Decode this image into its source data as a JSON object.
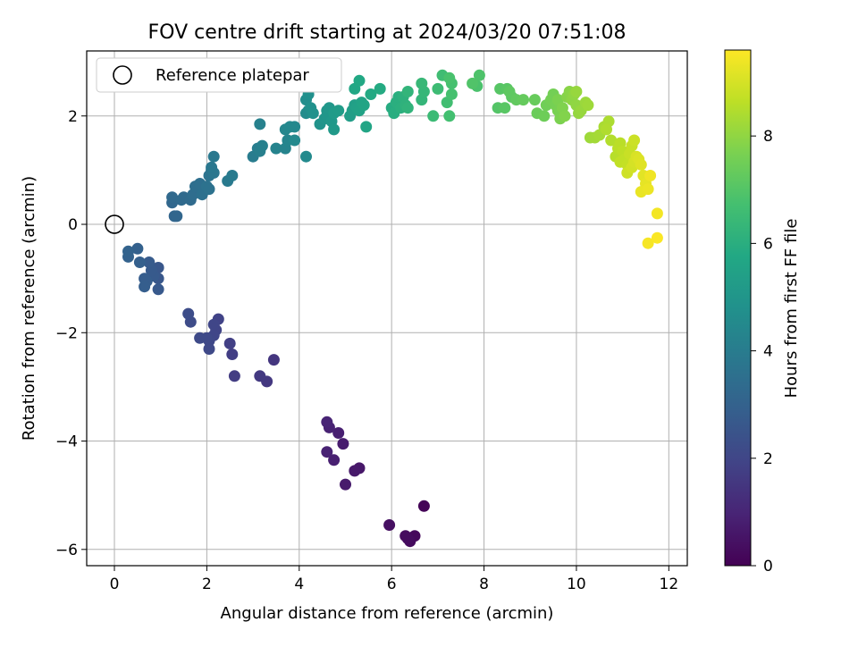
{
  "chart_data": {
    "type": "scatter",
    "title": "FOV centre drift starting at 2024/03/20 07:51:08",
    "xlabel": "Angular distance from reference (arcmin)",
    "ylabel": "Rotation from reference (arcmin)",
    "xlim": [
      -0.6,
      12.4
    ],
    "ylim": [
      -6.3,
      3.2
    ],
    "xticks": [
      "0",
      "2",
      "4",
      "6",
      "8",
      "10",
      "12"
    ],
    "yticks": [
      "−6",
      "−4",
      "−2",
      "0",
      "2"
    ],
    "grid": true,
    "legend": {
      "position": "top-left",
      "entries": [
        {
          "label": "Reference platepar",
          "marker": "open-circle",
          "x": 0,
          "y": 0
        }
      ]
    },
    "colorbar": {
      "label": "Hours from first FF file",
      "min": 0,
      "max": 9.6,
      "ticks": [
        "0",
        "2",
        "4",
        "6",
        "8"
      ],
      "colormap": "viridis"
    },
    "points": [
      [
        6.7,
        -5.2,
        0.1
      ],
      [
        6.5,
        -5.75,
        0.2
      ],
      [
        6.4,
        -5.85,
        0.25
      ],
      [
        6.35,
        -5.8,
        0.3
      ],
      [
        6.3,
        -5.75,
        0.3
      ],
      [
        5.95,
        -5.55,
        0.4
      ],
      [
        5.3,
        -4.5,
        0.6
      ],
      [
        5.2,
        -4.55,
        0.65
      ],
      [
        5.0,
        -4.8,
        0.7
      ],
      [
        4.95,
        -4.05,
        0.75
      ],
      [
        4.85,
        -3.85,
        0.8
      ],
      [
        4.75,
        -4.35,
        0.85
      ],
      [
        4.65,
        -3.75,
        0.9
      ],
      [
        4.6,
        -4.2,
        0.9
      ],
      [
        4.6,
        -3.65,
        0.95
      ],
      [
        3.45,
        -2.5,
        1.5
      ],
      [
        3.3,
        -2.9,
        1.55
      ],
      [
        3.15,
        -2.8,
        1.6
      ],
      [
        2.6,
        -2.8,
        1.7
      ],
      [
        2.55,
        -2.4,
        1.75
      ],
      [
        2.5,
        -2.2,
        1.8
      ],
      [
        2.25,
        -1.75,
        1.9
      ],
      [
        2.2,
        -1.95,
        1.95
      ],
      [
        2.15,
        -2.05,
        2.0
      ],
      [
        2.15,
        -1.85,
        2.0
      ],
      [
        2.05,
        -2.15,
        2.05
      ],
      [
        2.05,
        -2.3,
        2.1
      ],
      [
        2.0,
        -2.1,
        2.1
      ],
      [
        1.85,
        -2.1,
        2.15
      ],
      [
        1.65,
        -1.8,
        2.2
      ],
      [
        1.6,
        -1.65,
        2.25
      ],
      [
        0.95,
        -0.8,
        2.6
      ],
      [
        0.95,
        -1.0,
        2.6
      ],
      [
        0.95,
        -1.2,
        2.65
      ],
      [
        0.85,
        -0.95,
        2.7
      ],
      [
        0.8,
        -0.85,
        2.7
      ],
      [
        0.75,
        -0.7,
        2.75
      ],
      [
        0.7,
        -1.05,
        2.8
      ],
      [
        0.65,
        -1.0,
        2.8
      ],
      [
        0.65,
        -1.15,
        2.85
      ],
      [
        0.55,
        -0.7,
        2.9
      ],
      [
        0.5,
        -0.45,
        2.95
      ],
      [
        0.3,
        -0.6,
        3.0
      ],
      [
        0.3,
        -0.5,
        3.05
      ],
      [
        1.3,
        0.15,
        3.1
      ],
      [
        1.35,
        0.15,
        3.15
      ],
      [
        1.25,
        0.4,
        3.2
      ],
      [
        1.25,
        0.5,
        3.25
      ],
      [
        1.45,
        0.45,
        3.3
      ],
      [
        1.5,
        0.5,
        3.3
      ],
      [
        1.65,
        0.45,
        3.35
      ],
      [
        1.7,
        0.55,
        3.4
      ],
      [
        1.75,
        0.7,
        3.45
      ],
      [
        1.85,
        0.75,
        3.5
      ],
      [
        1.9,
        0.55,
        3.55
      ],
      [
        2.0,
        0.7,
        3.6
      ],
      [
        2.05,
        0.65,
        3.6
      ],
      [
        2.05,
        0.9,
        3.65
      ],
      [
        2.1,
        1.0,
        3.7
      ],
      [
        2.15,
        0.95,
        3.75
      ],
      [
        2.1,
        1.05,
        3.8
      ],
      [
        2.15,
        1.25,
        3.85
      ],
      [
        2.45,
        0.8,
        3.9
      ],
      [
        2.55,
        0.9,
        3.95
      ],
      [
        3.0,
        1.25,
        4.0
      ],
      [
        3.1,
        1.4,
        4.05
      ],
      [
        3.15,
        1.35,
        4.1
      ],
      [
        3.2,
        1.45,
        4.15
      ],
      [
        3.15,
        1.85,
        4.2
      ],
      [
        3.5,
        1.4,
        4.25
      ],
      [
        3.7,
        1.4,
        4.3
      ],
      [
        3.75,
        1.55,
        4.35
      ],
      [
        3.7,
        1.75,
        4.4
      ],
      [
        3.8,
        1.8,
        4.45
      ],
      [
        3.9,
        1.8,
        4.45
      ],
      [
        3.9,
        1.55,
        4.5
      ],
      [
        4.15,
        1.25,
        4.55
      ],
      [
        4.15,
        2.05,
        4.6
      ],
      [
        4.2,
        2.1,
        4.65
      ],
      [
        4.15,
        2.3,
        4.7
      ],
      [
        4.2,
        2.4,
        4.75
      ],
      [
        4.25,
        2.15,
        4.8
      ],
      [
        4.3,
        2.05,
        4.85
      ],
      [
        4.45,
        1.85,
        4.9
      ],
      [
        4.55,
        1.95,
        4.95
      ],
      [
        4.6,
        2.0,
        5.0
      ],
      [
        4.6,
        2.1,
        5.0
      ],
      [
        4.65,
        2.15,
        5.05
      ],
      [
        4.7,
        1.9,
        5.1
      ],
      [
        4.75,
        1.75,
        5.15
      ],
      [
        4.75,
        2.05,
        5.2
      ],
      [
        4.85,
        2.1,
        5.25
      ],
      [
        5.1,
        2.0,
        5.3
      ],
      [
        5.15,
        2.1,
        5.35
      ],
      [
        5.2,
        2.2,
        5.4
      ],
      [
        5.25,
        2.15,
        5.45
      ],
      [
        5.3,
        2.1,
        5.5
      ],
      [
        5.35,
        2.25,
        5.55
      ],
      [
        5.4,
        2.2,
        5.6
      ],
      [
        5.45,
        1.8,
        5.65
      ],
      [
        5.2,
        2.5,
        5.7
      ],
      [
        5.3,
        2.65,
        5.75
      ],
      [
        5.55,
        2.4,
        5.8
      ],
      [
        5.75,
        2.5,
        5.85
      ],
      [
        6.0,
        2.15,
        5.9
      ],
      [
        6.05,
        2.05,
        5.95
      ],
      [
        6.1,
        2.25,
        6.0
      ],
      [
        6.15,
        2.35,
        6.0
      ],
      [
        6.2,
        2.15,
        6.05
      ],
      [
        6.25,
        2.35,
        6.1
      ],
      [
        6.3,
        2.2,
        6.15
      ],
      [
        6.35,
        2.15,
        6.2
      ],
      [
        6.35,
        2.45,
        6.25
      ],
      [
        6.65,
        2.3,
        6.3
      ],
      [
        6.7,
        2.45,
        6.35
      ],
      [
        6.65,
        2.6,
        6.4
      ],
      [
        6.9,
        2.0,
        6.5
      ],
      [
        7.0,
        2.5,
        6.55
      ],
      [
        7.1,
        2.75,
        6.6
      ],
      [
        7.2,
        2.25,
        6.65
      ],
      [
        7.25,
        2.0,
        6.7
      ],
      [
        7.3,
        2.4,
        6.75
      ],
      [
        7.3,
        2.6,
        6.75
      ],
      [
        7.25,
        2.7,
        6.8
      ],
      [
        7.85,
        2.55,
        6.85
      ],
      [
        7.9,
        2.75,
        6.9
      ],
      [
        7.75,
        2.6,
        6.95
      ],
      [
        8.3,
        2.15,
        7.0
      ],
      [
        8.35,
        2.5,
        7.05
      ],
      [
        8.45,
        2.15,
        7.1
      ],
      [
        8.5,
        2.5,
        7.1
      ],
      [
        8.6,
        2.35,
        7.15
      ],
      [
        8.55,
        2.45,
        7.2
      ],
      [
        8.7,
        2.3,
        7.25
      ],
      [
        8.85,
        2.3,
        7.3
      ],
      [
        9.1,
        2.3,
        7.35
      ],
      [
        9.15,
        2.05,
        7.4
      ],
      [
        9.3,
        2.0,
        7.45
      ],
      [
        9.35,
        2.2,
        7.5
      ],
      [
        9.45,
        2.3,
        7.55
      ],
      [
        9.5,
        2.4,
        7.55
      ],
      [
        9.55,
        2.2,
        7.6
      ],
      [
        9.6,
        2.1,
        7.65
      ],
      [
        9.6,
        2.3,
        7.7
      ],
      [
        9.65,
        1.95,
        7.7
      ],
      [
        9.7,
        2.15,
        7.75
      ],
      [
        9.75,
        2.0,
        7.8
      ],
      [
        9.8,
        2.35,
        7.85
      ],
      [
        9.85,
        2.45,
        7.9
      ],
      [
        9.9,
        2.3,
        7.95
      ],
      [
        9.95,
        2.4,
        8.0
      ],
      [
        10.0,
        2.2,
        8.0
      ],
      [
        10.05,
        2.05,
        8.05
      ],
      [
        10.1,
        2.1,
        8.1
      ],
      [
        10.0,
        2.45,
        8.1
      ],
      [
        10.2,
        2.25,
        8.15
      ],
      [
        10.25,
        2.2,
        8.2
      ],
      [
        10.3,
        1.6,
        8.2
      ],
      [
        10.4,
        1.6,
        8.25
      ],
      [
        10.5,
        1.65,
        8.3
      ],
      [
        10.6,
        1.8,
        8.35
      ],
      [
        10.7,
        1.9,
        8.4
      ],
      [
        10.65,
        1.75,
        8.45
      ],
      [
        10.75,
        1.55,
        8.5
      ],
      [
        10.85,
        1.25,
        8.55
      ],
      [
        10.9,
        1.4,
        8.6
      ],
      [
        10.95,
        1.5,
        8.6
      ],
      [
        11.0,
        1.35,
        8.65
      ],
      [
        11.05,
        1.2,
        8.7
      ],
      [
        10.95,
        1.15,
        8.7
      ],
      [
        11.1,
        1.1,
        8.75
      ],
      [
        11.15,
        1.3,
        8.8
      ],
      [
        11.2,
        1.45,
        8.8
      ],
      [
        11.25,
        1.55,
        8.85
      ],
      [
        11.1,
        0.95,
        8.9
      ],
      [
        11.2,
        1.05,
        8.95
      ],
      [
        11.25,
        1.15,
        9.0
      ],
      [
        11.3,
        1.25,
        9.05
      ],
      [
        11.35,
        1.2,
        9.1
      ],
      [
        11.4,
        1.1,
        9.15
      ],
      [
        11.45,
        0.9,
        9.2
      ],
      [
        11.5,
        0.75,
        9.25
      ],
      [
        11.4,
        0.6,
        9.3
      ],
      [
        11.55,
        0.65,
        9.35
      ],
      [
        11.6,
        0.9,
        9.4
      ],
      [
        11.75,
        0.2,
        9.45
      ],
      [
        11.55,
        -0.35,
        9.5
      ],
      [
        11.75,
        -0.25,
        9.55
      ]
    ]
  }
}
